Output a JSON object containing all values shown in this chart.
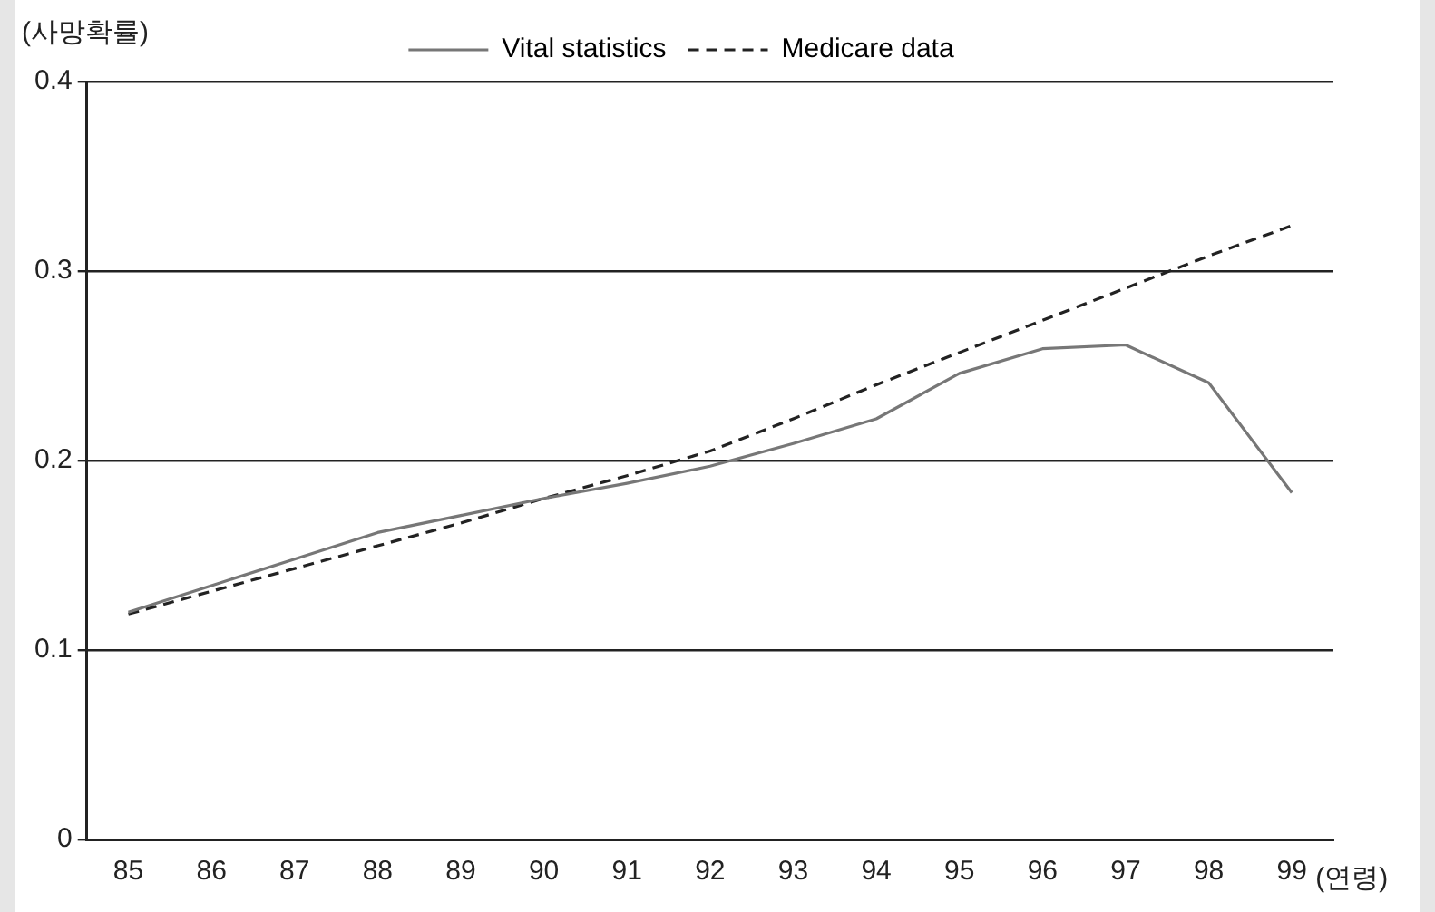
{
  "chart_data": {
    "type": "line",
    "xlabel": "(연령)",
    "ylabel": "(사망확률)",
    "categories": [
      "85",
      "86",
      "87",
      "88",
      "89",
      "90",
      "91",
      "92",
      "93",
      "94",
      "95",
      "96",
      "97",
      "98",
      "99"
    ],
    "series": [
      {
        "name": "Vital statistics",
        "color": "#777777",
        "line_style": "solid",
        "values": [
          0.12,
          0.134,
          0.148,
          0.162,
          0.171,
          0.18,
          0.188,
          0.197,
          0.209,
          0.222,
          0.246,
          0.259,
          0.261,
          0.241,
          0.183
        ]
      },
      {
        "name": "Medicare data",
        "color": "#222222",
        "line_style": "dashed",
        "values": [
          0.119,
          0.131,
          0.143,
          0.155,
          0.167,
          0.18,
          0.192,
          0.205,
          0.222,
          0.24,
          0.257,
          0.274,
          0.291,
          0.308,
          0.324
        ]
      }
    ],
    "ylim": [
      0,
      0.4
    ],
    "yticks": [
      0,
      0.1,
      0.2,
      0.3,
      0.4
    ],
    "grid": "y",
    "legend": "top",
    "marker": "none"
  }
}
